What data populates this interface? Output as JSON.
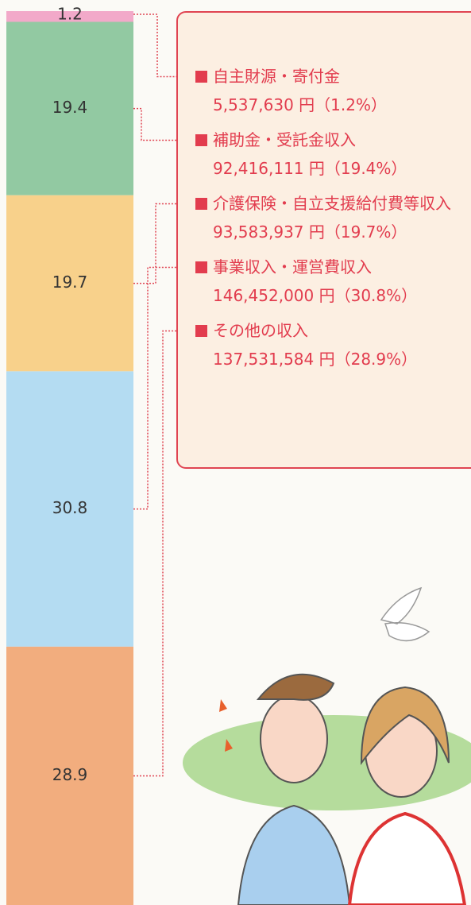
{
  "chart_data": {
    "type": "stacked_bar",
    "ylim": [
      0,
      100
    ],
    "series": [
      {
        "name": "自主財源・寄付金",
        "detail": "5,537,630 円（1.2%）",
        "color": "#f2a9c9",
        "values": [
          1.2
        ]
      },
      {
        "name": "補助金・受託金収入",
        "detail": "92,416,111 円（19.4%）",
        "color": "#92c9a2",
        "values": [
          19.4
        ]
      },
      {
        "name": "介護保険・自立支援給付費等収入",
        "detail": "93,583,937 円（19.7%）",
        "color": "#f8d18b",
        "values": [
          19.7
        ]
      },
      {
        "name": "事業収入・運営費収入",
        "detail": "146,452,000 円（30.8%）",
        "color": "#b4dcf2",
        "values": [
          30.8
        ]
      },
      {
        "name": "その他の収入",
        "detail": "137,531,584 円（28.9%）",
        "color": "#f2ad7e",
        "values": [
          28.9
        ]
      }
    ]
  }
}
